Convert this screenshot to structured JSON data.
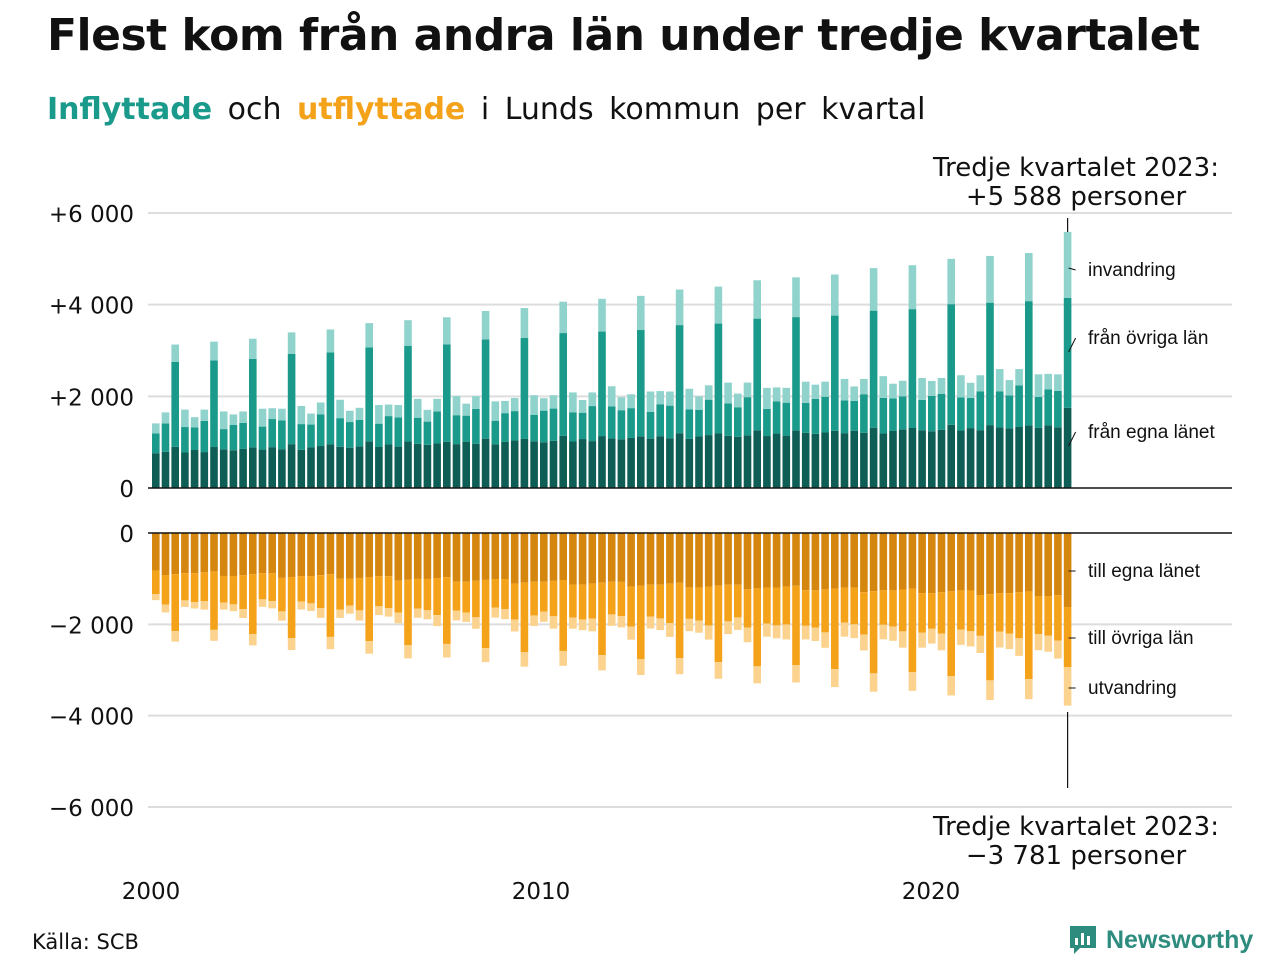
{
  "header": {
    "title": "Flest kom från andra län under tredje kvartalet",
    "subtitle_in": "Inflyttade",
    "subtitle_and": "och",
    "subtitle_out": "utflyttade",
    "subtitle_rest": "i Lunds kommun per kvartal"
  },
  "footer": {
    "source": "Källa: SCB",
    "brand": "Newsworthy"
  },
  "colors": {
    "in_own_county": "#0e5e56",
    "in_other_counties": "#1a9a8a",
    "in_immigration": "#8fd3cc",
    "out_own_county": "#d4860e",
    "out_other_counties": "#f5a21b",
    "out_emigration": "#fbd38e",
    "grid": "#dddddd"
  },
  "chart_data": {
    "type": "bar",
    "stacked": true,
    "x_axis": {
      "ticks": [
        2000,
        2010,
        2020
      ],
      "tick_labels": [
        "2000",
        "2010",
        "2020"
      ],
      "range": [
        "2000 Q1",
        "2023 Q3"
      ]
    },
    "panels": [
      {
        "id": "inflyttade",
        "ylim": [
          0,
          6000
        ],
        "yticks": [
          0,
          2000,
          4000,
          6000
        ],
        "ytick_labels": [
          "0",
          "+2 000",
          "+4 000",
          "+6 000"
        ],
        "series_labels": [
          "från egna länet",
          "från övriga län",
          "invandring"
        ],
        "annotation": {
          "line1": "Tredje kvartalet 2023:",
          "line2": "+5 588 personer"
        },
        "last_quarter": {
          "period": "2023 Q3",
          "total": 5588,
          "from_own_county": 1750,
          "from_other_counties": 2400,
          "immigration": 1438
        }
      },
      {
        "id": "utflyttade",
        "ylim": [
          -6000,
          0
        ],
        "yticks": [
          0,
          -2000,
          -4000,
          -6000
        ],
        "ytick_labels": [
          "0",
          "−2 000",
          "−4 000",
          "−6 000"
        ],
        "series_labels": [
          "till egna länet",
          "till övriga län",
          "utvandring"
        ],
        "annotation": {
          "line1": "Tredje kvartalet 2023:",
          "line2": "−3 781 personer"
        },
        "last_quarter": {
          "period": "2023 Q3",
          "total": -3781,
          "to_own_county": -1620,
          "to_other_counties": -1320,
          "emigration": -841
        }
      }
    ]
  }
}
